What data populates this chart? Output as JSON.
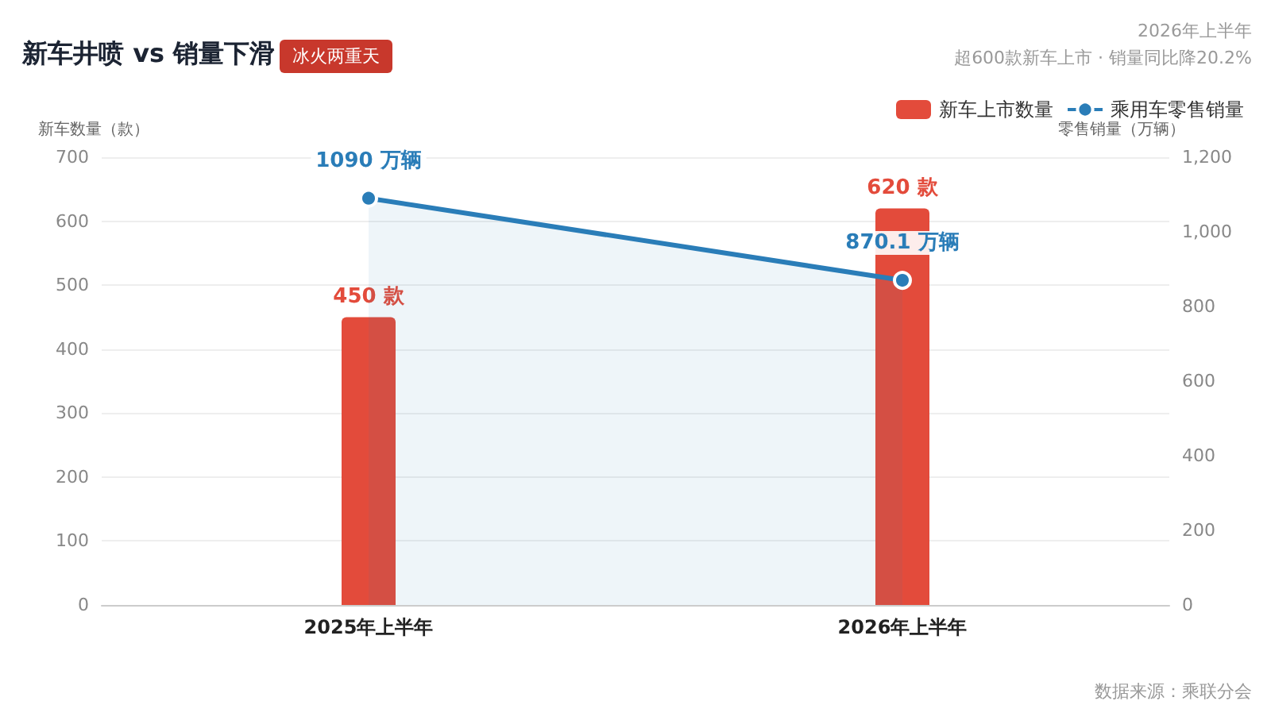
{
  "chart_data": {
    "type": "bar",
    "title": "新车井喷 vs 销量下滑",
    "subtitle": "冰火两重天",
    "annotations": [
      "2026年上半年",
      "超600款新车上市 · 销量同比降20.2%",
      "数据来源：乘联分会"
    ],
    "categories": [
      "2025年上半年",
      "2026年上半年"
    ],
    "ylabel": "新车数量（款）",
    "y2label": "零售销量（万辆）",
    "series": [
      {
        "name": "新车上市数量",
        "type": "bar",
        "color": "#e34b3b",
        "values": [
          450,
          620
        ],
        "value_labels": [
          "450 款",
          "620 款"
        ]
      },
      {
        "name": "乘用车零售销量",
        "type": "area",
        "axis": "y2",
        "color": "#2a7db8",
        "values": [
          1090,
          870.1
        ],
        "value_labels": [
          "1090 万辆",
          "870.1 万辆"
        ]
      }
    ],
    "ylim": [
      0,
      700
    ],
    "yticks": [
      0,
      100,
      200,
      300,
      400,
      500,
      600,
      700
    ],
    "y2lim": [
      0,
      1200
    ],
    "y2ticks": [
      0,
      200,
      400,
      600,
      800,
      {
        "value": 1000,
        "label": "1,000"
      },
      {
        "value": 1200,
        "label": "1,200"
      }
    ],
    "grid": "y",
    "legend": "top right",
    "marker": "circle",
    "line_style": "solid"
  }
}
